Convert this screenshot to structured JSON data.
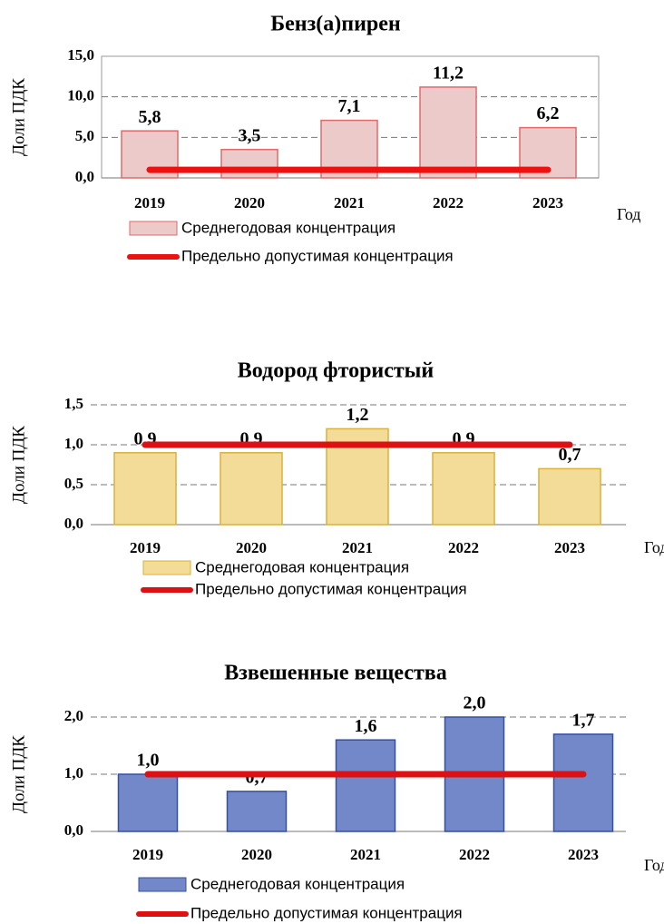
{
  "chart_data": [
    {
      "type": "bar",
      "title": "Бенз(а)пирен",
      "y_label": "Доли ПДК",
      "x_label": "Год",
      "categories": [
        "2019",
        "2020",
        "2021",
        "2022",
        "2023"
      ],
      "series": [
        {
          "name": "Среднегодовая концентрация",
          "color": "#eccaca",
          "edge": "#e06a6a",
          "values": [
            5.8,
            3.5,
            7.1,
            11.2,
            6.2
          ],
          "value_labels": [
            "5,8",
            "3,5",
            "7,1",
            "11,2",
            "6,2"
          ]
        },
        {
          "name": "Предельно допустимая концентрация",
          "type": "line",
          "color": "#ee1111",
          "values": [
            1,
            1,
            1,
            1,
            1
          ]
        }
      ],
      "ylim": [
        0,
        15
      ],
      "yticks": [
        {
          "value": 0,
          "label": "0,0"
        },
        {
          "value": 5,
          "label": "5,0"
        },
        {
          "value": 10,
          "label": "10,0"
        },
        {
          "value": 15,
          "label": "15,0"
        }
      ],
      "grid": true
    },
    {
      "type": "bar",
      "title": "Водород фтористый",
      "y_label": "Доли ПДК",
      "x_label": "Год",
      "categories": [
        "2019",
        "2020",
        "2021",
        "2022",
        "2023"
      ],
      "series": [
        {
          "name": "Среднегодовая концентрация",
          "color": "#f3dc98",
          "edge": "#d9b13c",
          "values": [
            0.9,
            0.9,
            1.2,
            0.9,
            0.7
          ],
          "value_labels": [
            "0,9",
            "0,9",
            "1,2",
            "0,9",
            "0,7"
          ]
        },
        {
          "name": "Предельно допустимая концентрация",
          "type": "line",
          "color": "#dd1111",
          "values": [
            1,
            1,
            1,
            1,
            1
          ]
        }
      ],
      "ylim": [
        0,
        1.5
      ],
      "yticks": [
        {
          "value": 0,
          "label": "0,0"
        },
        {
          "value": 0.5,
          "label": "0,5"
        },
        {
          "value": 1,
          "label": "1,0"
        },
        {
          "value": 1.5,
          "label": "1,5"
        }
      ],
      "grid": true
    },
    {
      "type": "bar",
      "title": "Взвешенные вещества",
      "y_label": "Доли ПДК",
      "x_label": "Год",
      "categories": [
        "2019",
        "2020",
        "2021",
        "2022",
        "2023"
      ],
      "series": [
        {
          "name": "Среднегодовая концентрация",
          "color": "#7288c8",
          "edge": "#34509e",
          "values": [
            1.0,
            0.7,
            1.6,
            2.0,
            1.7
          ],
          "value_labels": [
            "1,0",
            "0,7",
            "1,6",
            "2,0",
            "1,7"
          ]
        },
        {
          "name": "Предельно допустимая концентрация",
          "type": "line",
          "color": "#dd1111",
          "values": [
            1,
            1,
            1,
            1,
            1
          ]
        }
      ],
      "ylim": [
        0,
        2
      ],
      "yticks": [
        {
          "value": 0,
          "label": "0,0"
        },
        {
          "value": 1,
          "label": "1,0"
        },
        {
          "value": 2,
          "label": "2,0"
        }
      ],
      "grid": true
    }
  ]
}
